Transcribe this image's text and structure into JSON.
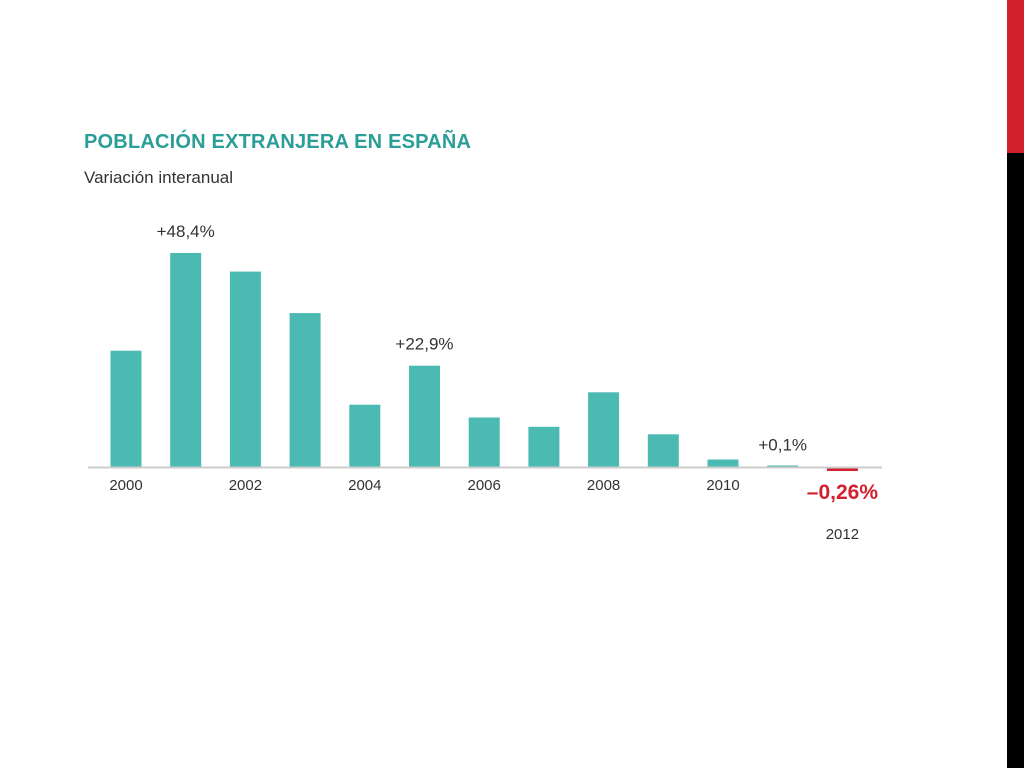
{
  "colors": {
    "accent": "#4bbab3",
    "title": "#2a9e97",
    "negative": "#d0212d",
    "side_red": "#d0212d",
    "side_black": "#000000",
    "baseline": "#cccccc"
  },
  "chart_data": {
    "type": "bar",
    "title": "POBLACIÓN EXTRANJERA EN ESPAÑA",
    "subtitle": "Variación interanual",
    "xlabel": "",
    "ylabel": "",
    "categories": [
      "2000",
      "2001",
      "2002",
      "2003",
      "2004",
      "2005",
      "2006",
      "2007",
      "2008",
      "2009",
      "2010",
      "2011",
      "2012"
    ],
    "values": [
      26.3,
      48.4,
      44.2,
      34.8,
      14.1,
      22.9,
      11.2,
      9.1,
      16.9,
      7.4,
      1.7,
      0.1,
      -0.26
    ],
    "tick_labels": [
      {
        "category": "2000",
        "text": "2000"
      },
      {
        "category": "2002",
        "text": "2002"
      },
      {
        "category": "2004",
        "text": "2004"
      },
      {
        "category": "2006",
        "text": "2006"
      },
      {
        "category": "2008",
        "text": "2008"
      },
      {
        "category": "2010",
        "text": "2010"
      },
      {
        "category": "2012",
        "text": "2012",
        "offset": "below-annotation"
      }
    ],
    "annotations": [
      {
        "category": "2001",
        "text": "+48,4%",
        "style": "normal"
      },
      {
        "category": "2005",
        "text": "+22,9%",
        "style": "normal"
      },
      {
        "category": "2011",
        "text": "+0,1%",
        "style": "normal"
      },
      {
        "category": "2012",
        "text": "–0,26%",
        "style": "negative"
      }
    ],
    "ylim": [
      -1,
      50
    ],
    "grid": false,
    "legend": "none"
  }
}
